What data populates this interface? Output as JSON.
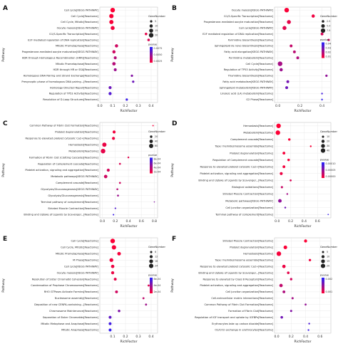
{
  "colors": {
    "low_p": "#ff0033",
    "high_p": "#2222ff"
  },
  "chart_data": [
    {
      "panel": "A",
      "type": "scatter",
      "xlabel": "RichFactor",
      "ylabel": "Pathway",
      "xlim": [
        0,
        0.45
      ],
      "xticks": [
        "0.0",
        "0.1",
        "0.2",
        "0.3",
        "0.4"
      ],
      "xtick_values": [
        0,
        0.1,
        0.2,
        0.3,
        0.4
      ],
      "size_legend": {
        "title": "GeneNumber",
        "values": [
          5,
          10,
          15,
          20
        ],
        "labels": [
          "5",
          "10",
          "15",
          "20"
        ]
      },
      "color_legend": {
        "title": "pvalue",
        "ticks": [
          "0.0075",
          "0.0050",
          "0.0025"
        ],
        "range": [
          0,
          0.009
        ]
      },
      "points": [
        {
          "term": "Cell cycle[KEGG PATHWAY]",
          "x": 0.1,
          "size": 20,
          "p": 0.0001
        },
        {
          "term": "Cell Cycle[Reactome]",
          "x": 0.09,
          "size": 18,
          "p": 0.0002
        },
        {
          "term": "Cell Cycle, Mitotic[Reactome]",
          "x": 0.09,
          "size": 17,
          "p": 0.0003
        },
        {
          "term": "Oocyte meiosis[KEGG PATHWAY]",
          "x": 0.1,
          "size": 15,
          "p": 0.0005
        },
        {
          "term": "G1/S-Specific Transcription[Reactome]",
          "x": 0.36,
          "size": 6,
          "p": 0.001
        },
        {
          "term": "E2F mediated regulation of DNA replication[Reactome]",
          "x": 0.38,
          "size": 6,
          "p": 0.0015
        },
        {
          "term": "Mitotic Prometaphase[Reactome]",
          "x": 0.13,
          "size": 10,
          "p": 0.002
        },
        {
          "term": "Progesterone-mediated oocyte maturation[KEGG PATHWAY]",
          "x": 0.11,
          "size": 10,
          "p": 0.002
        },
        {
          "term": "HDR through Homologous Recombination (HRR)[Reactome]",
          "x": 0.12,
          "size": 8,
          "p": 0.003
        },
        {
          "term": "Mitotic Prometaphase[Reactome]",
          "x": 0.11,
          "size": 11,
          "p": 0.003
        },
        {
          "term": "HDR through HR or SSA[Reactome]",
          "x": 0.12,
          "size": 8,
          "p": 0.004
        },
        {
          "term": "Homologous DNA Pairing and Strand Exchange[Reactome]",
          "x": 0.25,
          "size": 5,
          "p": 0.005
        },
        {
          "term": "Presynaptic phase of homologous DNA pairing...[Reactome]",
          "x": 0.26,
          "size": 5,
          "p": 0.006
        },
        {
          "term": "Homology Directed Repair[Reactome]",
          "x": 0.08,
          "size": 8,
          "p": 0.006
        },
        {
          "term": "Regulation of TP53 Activity[Reactome]",
          "x": 0.08,
          "size": 9,
          "p": 0.007
        },
        {
          "term": "Resolution of D-Loop Structures[Reactome]",
          "x": 0.21,
          "size": 5,
          "p": 0.008
        }
      ]
    },
    {
      "panel": "B",
      "type": "scatter",
      "xlabel": "RichFactor",
      "ylabel": "Pathway",
      "xlim": [
        -0.03,
        0.48
      ],
      "xticks": [
        "0.0",
        "0.2",
        "0.4"
      ],
      "xtick_values": [
        0,
        0.2,
        0.4
      ],
      "size_legend": {
        "title": "GeneNumber",
        "values": [
          2.5,
          5,
          7.5
        ],
        "labels": [
          "2.5",
          "5.0",
          "7.5"
        ]
      },
      "color_legend": {
        "title": "pvalue",
        "ticks": [
          "0.04",
          "0.03",
          "0.02",
          "0.01"
        ],
        "range": [
          0,
          0.045
        ]
      },
      "points": [
        {
          "term": "Oocyte meiosis[KEGG PATHWAY]",
          "x": 0.08,
          "size": 8,
          "p": 0.001
        },
        {
          "term": "G1/S-Specific Transcription[Reactome]",
          "x": 0.32,
          "size": 4,
          "p": 0.003
        },
        {
          "term": "Progesterone-mediated oocyte maturation[Reactome]",
          "x": 0.1,
          "size": 6,
          "p": 0.005
        },
        {
          "term": "Cell cycle[KEGG PATHWAY]",
          "x": 0.06,
          "size": 6,
          "p": 0.006
        },
        {
          "term": "E2F mediated regulation of DNA replication[Reactome]",
          "x": 0.4,
          "size": 3,
          "p": 0.008
        },
        {
          "term": "Pyrimidine biosynthesis[Reactome]",
          "x": 0.46,
          "size": 2,
          "p": 0.01
        },
        {
          "term": "Sphingolipid de novo biosynthesis[Reactome]",
          "x": 0.12,
          "size": 3,
          "p": 0.012
        },
        {
          "term": "Fatty acid elongation[KEGG PATHWAY]",
          "x": 0.15,
          "size": 3,
          "p": 0.014
        },
        {
          "term": "Pyrimidine metabolism[Reactome]",
          "x": 0.18,
          "size": 3,
          "p": 0.016
        },
        {
          "term": "Cell Cycle[Reactome]",
          "x": 0.02,
          "size": 8,
          "p": 0.018
        },
        {
          "term": "Regulation of TP53 Activity[Reactome]",
          "x": 0.03,
          "size": 4,
          "p": 0.02
        },
        {
          "term": "Thymidine biosynthesis[Reactome]",
          "x": 0.44,
          "size": 2,
          "p": 0.022
        },
        {
          "term": "Fatty acid metabolism[KEGG PATHWAY]",
          "x": 0.09,
          "size": 3,
          "p": 0.028
        },
        {
          "term": "Sphingolipid metabolism[KEGG PATHWAY]",
          "x": 0.08,
          "size": 3,
          "p": 0.03
        },
        {
          "term": "Linoleic acid (LA) metabolism[Reactome]",
          "x": 0.4,
          "size": 1,
          "p": 0.038
        },
        {
          "term": "G2 Phase[Reactome]",
          "x": 0.4,
          "size": 1,
          "p": 0.042
        }
      ]
    },
    {
      "panel": "C",
      "type": "scatter",
      "xlabel": "RichFactor",
      "ylabel": "Pathway",
      "xlim": [
        -0.04,
        0.85
      ],
      "xticks": [
        "0.0",
        "0.2",
        "0.4",
        "0.6",
        "0.8"
      ],
      "xtick_values": [
        0,
        0.2,
        0.4,
        0.6,
        0.8
      ],
      "size_legend": {
        "title": "GeneNumber",
        "values": [
          20,
          40,
          60
        ],
        "labels": [
          "20",
          "40",
          "60"
        ]
      },
      "color_legend": {
        "title": "pvalue",
        "ticks": [
          "8e-04",
          "6e-04",
          "4e-04",
          "2e-04"
        ],
        "range": [
          0,
          0.0009
        ]
      },
      "points": [
        {
          "term": "Common Pathway of Fibrin Clot Formation[Reactome]",
          "x": 0.78,
          "size": 6,
          "p": 3e-05
        },
        {
          "term": "Platelet degranulation[Reactome]",
          "x": 0.18,
          "size": 30,
          "p": 5e-05
        },
        {
          "term": "Response to elevated platelet cytosolic Ca2+[Reactome]",
          "x": 0.17,
          "size": 30,
          "p": 6e-05
        },
        {
          "term": "Hemostasis[Reactome]",
          "x": 0.03,
          "size": 60,
          "p": 8e-05
        },
        {
          "term": "Metabolism[Reactome]",
          "x": 0.01,
          "size": 70,
          "p": 0.0001
        },
        {
          "term": "Formation of Fibrin Clot (Clotting Cascade)[Reactome]",
          "x": 0.4,
          "size": 10,
          "p": 0.00012
        },
        {
          "term": "Regulation of Complement cascade[Reactome]",
          "x": 0.27,
          "size": 12,
          "p": 0.00015
        },
        {
          "term": "Platelet activation, signaling and aggregation[Reactome]",
          "x": 0.09,
          "size": 30,
          "p": 0.00018
        },
        {
          "term": "Metabolic pathways[KEGG PATHWAY]",
          "x": 0.05,
          "size": 40,
          "p": 0.0002
        },
        {
          "term": "Complement cascade[Reactome]",
          "x": 0.27,
          "size": 12,
          "p": 0.0002
        },
        {
          "term": "Glycolysis/Gluconeogenesis[KEGG PATHWAY]",
          "x": 0.23,
          "size": 12,
          "p": 0.0003
        },
        {
          "term": "Glycolysis/Gluconeogenesis[Reactome]",
          "x": 0.24,
          "size": 12,
          "p": 0.0004
        },
        {
          "term": "Terminal pathway of complement[Reactome]",
          "x": 0.8,
          "size": 4,
          "p": 0.0005
        },
        {
          "term": "Striated Muscle Contraction[Reactome]",
          "x": 0.2,
          "size": 8,
          "p": 0.0007
        },
        {
          "term": "Binding and Uptake of Ligands by Scavenger...[Reactome]",
          "x": 0.17,
          "size": 8,
          "p": 0.0008
        }
      ]
    },
    {
      "panel": "D",
      "type": "scatter",
      "xlabel": "RichFactor",
      "ylabel": "Pathway",
      "xlim": [
        -0.04,
        0.8
      ],
      "xticks": [
        "0.0",
        "0.2",
        "0.4",
        "0.6"
      ],
      "xtick_values": [
        0,
        0.2,
        0.4,
        0.6
      ],
      "size_legend": {
        "title": "GeneNumber",
        "values": [
          10,
          20,
          30,
          40
        ],
        "labels": [
          "10",
          "20",
          "30",
          "40"
        ]
      },
      "color_legend": {
        "title": "pvalue",
        "ticks": [
          "0.00010",
          "0.00005",
          "0.00000"
        ],
        "range": [
          0,
          0.00012
        ]
      },
      "points": [
        {
          "term": "Hemostasis[Reactome]",
          "x": 0.02,
          "size": 42,
          "p": 5e-07
        },
        {
          "term": "Metabolism[Reactome]",
          "x": 0.01,
          "size": 42,
          "p": 1e-06
        },
        {
          "term": "Complement cascade[Reactome]",
          "x": 0.18,
          "size": 12,
          "p": 2e-06
        },
        {
          "term": "Type I hemidesmosome assembly[Reactome]",
          "x": 0.5,
          "size": 6,
          "p": 3e-06
        },
        {
          "term": "Platelet degranulation[Reactome]",
          "x": 0.1,
          "size": 15,
          "p": 4e-06
        },
        {
          "term": "Regulation of Complement cascade[Reactome]",
          "x": 0.17,
          "size": 12,
          "p": 5e-06
        },
        {
          "term": "Response to elevated platelet cytosolic Ca2+[Reactome]",
          "x": 0.1,
          "size": 15,
          "p": 6e-06
        },
        {
          "term": "Platelet activation, signaling and aggregation[Reactome]",
          "x": 0.06,
          "size": 18,
          "p": 1e-05
        },
        {
          "term": "Binding and Uptake of Ligands by Scavenger...[Reactome]",
          "x": 0.2,
          "size": 8,
          "p": 2e-05
        },
        {
          "term": "Biological oxidations[Reactome]",
          "x": 0.07,
          "size": 10,
          "p": 3e-05
        },
        {
          "term": "Striated Muscle Contraction[Reactome]",
          "x": 0.15,
          "size": 6,
          "p": 5e-05
        },
        {
          "term": "Metabolic pathways[KEGG PATHWAY]",
          "x": 0.04,
          "size": 25,
          "p": 6e-05
        },
        {
          "term": "Cell junction organization[Reactome]",
          "x": 0.12,
          "size": 6,
          "p": 8e-05
        },
        {
          "term": "Terminal pathway of complement[Reactome]",
          "x": 0.76,
          "size": 3,
          "p": 0.00011
        }
      ]
    },
    {
      "panel": "E",
      "type": "scatter",
      "xlabel": "RichFactor",
      "ylabel": "Pathway",
      "xlim": [
        0.0,
        0.45
      ],
      "xticks": [
        "0.1",
        "0.2",
        "0.3",
        "0.4"
      ],
      "xtick_values": [
        0.1,
        0.2,
        0.3,
        0.4
      ],
      "size_legend": {
        "title": "GeneNumber",
        "values": [
          6,
          12,
          18,
          24
        ],
        "labels": [
          "6",
          "12",
          "18",
          "24"
        ]
      },
      "color_legend": {
        "title": "pvalue",
        "ticks": [
          "6e-04",
          "4e-04",
          "2e-04"
        ],
        "range": [
          0,
          0.0007
        ]
      },
      "points": [
        {
          "term": "Cell Cycle[Reactome]",
          "x": 0.1,
          "size": 26,
          "p": 1e-05
        },
        {
          "term": "Cell Cycle, Mitotic[Reactome]",
          "x": 0.11,
          "size": 24,
          "p": 2e-05
        },
        {
          "term": "Mitotic Prometaphase[Reactome]",
          "x": 0.15,
          "size": 16,
          "p": 3e-05
        },
        {
          "term": "M Phase[Reactome]",
          "x": 0.09,
          "size": 18,
          "p": 4e-05
        },
        {
          "term": "Cell cycle[KEGG PATHWAY]",
          "x": 0.1,
          "size": 14,
          "p": 5e-05
        },
        {
          "term": "Oocyte meiosis[KEGG PATHWAY]",
          "x": 0.1,
          "size": 12,
          "p": 6e-05
        },
        {
          "term": "Resolution of Sister Chromatid Cohesion[Reactome]",
          "x": 0.12,
          "size": 10,
          "p": 8e-05
        },
        {
          "term": "Condensation of Prophase Chromosomes[Reactome]",
          "x": 0.38,
          "size": 5,
          "p": 0.0001
        },
        {
          "term": "RHO GTPases Activate Formins[Reactome]",
          "x": 0.13,
          "size": 10,
          "p": 0.00015
        },
        {
          "term": "Nucleosome assembly[Reactome]",
          "x": 0.34,
          "size": 5,
          "p": 0.0002
        },
        {
          "term": "Deposition of new CENPA-containing...[Reactome]",
          "x": 0.36,
          "size": 5,
          "p": 0.0003
        },
        {
          "term": "Chromosome Maintenance[Reactome]",
          "x": 0.15,
          "size": 8,
          "p": 0.0004
        },
        {
          "term": "Separation of Sister Chromatids[Reactome]",
          "x": 0.08,
          "size": 10,
          "p": 0.0005
        },
        {
          "term": "Mitotic Metaphase and Anaphase[Reactome]",
          "x": 0.08,
          "size": 10,
          "p": 0.0006
        },
        {
          "term": "Mitotic Anaphase[Reactome]",
          "x": 0.08,
          "size": 10,
          "p": 0.00065
        }
      ]
    },
    {
      "panel": "F",
      "type": "scatter",
      "xlabel": "RichFactor",
      "ylabel": "Pathway",
      "xlim": [
        -0.03,
        0.75
      ],
      "xticks": [
        "0.0",
        "0.2",
        "0.4",
        "0.6"
      ],
      "xtick_values": [
        0,
        0.2,
        0.4,
        0.6
      ],
      "size_legend": {
        "title": "GeneNumber",
        "values": [
          5,
          10,
          15,
          20
        ],
        "labels": [
          "5",
          "10",
          "15",
          "20"
        ]
      },
      "color_legend": {
        "title": "pvalue",
        "ticks": [
          "0.002",
          "0.001"
        ],
        "range": [
          0,
          0.0025
        ]
      },
      "points": [
        {
          "term": "Striated Muscle Contraction[Reactome]",
          "x": 0.4,
          "size": 10,
          "p": 2e-05
        },
        {
          "term": "Platelet degranulation[Reactome]",
          "x": 0.12,
          "size": 14,
          "p": 5e-05
        },
        {
          "term": "Hemostasis[Reactome]",
          "x": 0.03,
          "size": 22,
          "p": 0.0001
        },
        {
          "term": "Type I hemidesmosome assembly[Reactome]",
          "x": 0.46,
          "size": 6,
          "p": 0.00015
        },
        {
          "term": "Response to elevated platelet cytosolic Ca2+[Reactome]",
          "x": 0.1,
          "size": 12,
          "p": 0.0002
        },
        {
          "term": "Binding and Uptake of Ligands by Scavenger...[Reactome]",
          "x": 0.16,
          "size": 7,
          "p": 0.0003
        },
        {
          "term": "Response to elevated by Class B Receptors[Reactome]",
          "x": 0.2,
          "size": 6,
          "p": 0.0005
        },
        {
          "term": "Platelet activation, signaling and aggregation[Reactome]",
          "x": 0.06,
          "size": 12,
          "p": 0.0007
        },
        {
          "term": "Cell junction organization[Reactome]",
          "x": 0.1,
          "size": 8,
          "p": 0.0009
        },
        {
          "term": "Cell-extracellular matrix interactions[Reactome]",
          "x": 0.22,
          "size": 5,
          "p": 0.001
        },
        {
          "term": "Common Pathway of Fibrin Clot Formation[Reactome]",
          "x": 0.4,
          "size": 4,
          "p": 0.0012
        },
        {
          "term": "Formation of Fibrin Clot[Reactome]",
          "x": 0.2,
          "size": 5,
          "p": 0.0014
        },
        {
          "term": "Regulation of IGF transport and uptake by IGFBPs[Reactome]",
          "x": 0.07,
          "size": 7,
          "p": 0.0016
        },
        {
          "term": "Erythrocytes take up carbon dioxide[Reactome]",
          "x": 0.45,
          "size": 3,
          "p": 0.002
        },
        {
          "term": "O2/CO2 exchange in erythrocytes[Reactome]",
          "x": 0.44,
          "size": 3,
          "p": 0.0022
        }
      ]
    }
  ]
}
